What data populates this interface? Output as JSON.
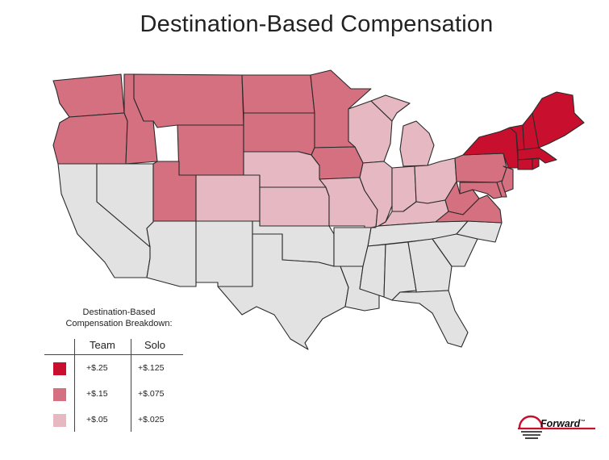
{
  "title": "Destination-Based Compensation",
  "colors": {
    "high": "#c8102e",
    "mid": "#d4707f",
    "low": "#e6b8c1",
    "none": "#e2e2e2",
    "border": "#2a2a2a"
  },
  "map_data": {
    "high_states": [
      "ME",
      "NH",
      "VT",
      "MA",
      "CT",
      "RI",
      "NY"
    ],
    "mid_states": [
      "WA",
      "OR",
      "ID",
      "MT",
      "WY",
      "UT",
      "ND",
      "SD",
      "MN",
      "IA",
      "PA",
      "NJ",
      "MD",
      "DE",
      "VA",
      "WV"
    ],
    "low_states": [
      "NE",
      "KS",
      "CO",
      "MO",
      "WI",
      "IL",
      "IN",
      "MI",
      "OH",
      "KY"
    ],
    "other_states": [
      "CA",
      "NV",
      "AZ",
      "NM",
      "TX",
      "OK",
      "AR",
      "LA",
      "MS",
      "AL",
      "GA",
      "FL",
      "SC",
      "NC",
      "TN"
    ]
  },
  "legend": {
    "title_line1": "Destination-Based",
    "title_line2": "Compensation Breakdown:",
    "col_team": "Team",
    "col_solo": "Solo",
    "rows": [
      {
        "team": "+$.25",
        "solo": "+$.125"
      },
      {
        "team": "+$.15",
        "solo": "+$.075"
      },
      {
        "team": "+$.05",
        "solo": "+$.025"
      }
    ]
  },
  "logo": {
    "text": "Forward",
    "trademark": "™"
  }
}
